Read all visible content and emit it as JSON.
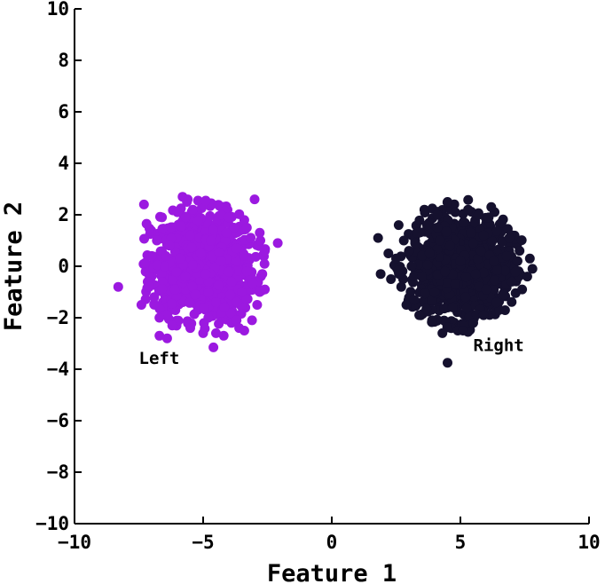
{
  "chart_data": {
    "type": "scatter",
    "xlabel": "Feature 1",
    "ylabel": "Feature 2",
    "xlim": [
      -10,
      10
    ],
    "ylim": [
      -10,
      10
    ],
    "xticks": [
      "−10",
      "−5",
      "0",
      "5",
      "10"
    ],
    "xtick_values": [
      -10,
      -5,
      0,
      5,
      10
    ],
    "yticks": [
      "−10",
      "−8",
      "−6",
      "−4",
      "−2",
      "0",
      "2",
      "4",
      "6",
      "8",
      "10"
    ],
    "ytick_values": [
      -10,
      -8,
      -6,
      -4,
      -2,
      0,
      2,
      4,
      6,
      8,
      10
    ],
    "grid": false,
    "legend": "none",
    "series": [
      {
        "color": "#9b19e0",
        "cluster_center": [
          -5,
          0
        ],
        "cluster_std": 1,
        "approx_points": 1000,
        "points": [
          [
            -8.3,
            -0.8
          ],
          [
            -7.3,
            2.4
          ],
          [
            -7.4,
            -1.5
          ],
          [
            -7.2,
            1.65
          ],
          [
            -7.1,
            -0.8
          ],
          [
            -7.0,
            0.4
          ],
          [
            -6.9,
            -1.2
          ],
          [
            -6.8,
            1.0
          ],
          [
            -6.7,
            -2.0
          ],
          [
            -6.6,
            1.9
          ],
          [
            -6.7,
            -2.7
          ],
          [
            -6.4,
            -2.8
          ],
          [
            -5.8,
            2.7
          ],
          [
            -5.6,
            2.6
          ],
          [
            -5.4,
            2.2
          ],
          [
            -5.2,
            2.55
          ],
          [
            -4.9,
            2.55
          ],
          [
            -4.8,
            -2.0
          ],
          [
            -4.6,
            -3.15
          ],
          [
            -4.5,
            -2.6
          ],
          [
            -4.3,
            2.0
          ],
          [
            -4.0,
            1.9
          ],
          [
            -3.9,
            -2.2
          ],
          [
            -3.7,
            -2.1
          ],
          [
            -3.6,
            -2.4
          ],
          [
            -3.4,
            -2.5
          ],
          [
            -3.3,
            1.5
          ],
          [
            -3.1,
            -2.1
          ],
          [
            -3.0,
            2.6
          ],
          [
            -2.9,
            -1.5
          ],
          [
            -2.8,
            -1.0
          ],
          [
            -2.8,
            1.3
          ],
          [
            -2.7,
            -0.3
          ],
          [
            -2.6,
            0.6
          ],
          [
            -2.6,
            -0.9
          ],
          [
            -2.1,
            0.9
          ],
          [
            -6.2,
            -2.3
          ],
          [
            -6.0,
            2.1
          ],
          [
            -5.5,
            -2.4
          ],
          [
            -5.0,
            -2.6
          ],
          [
            -4.2,
            -2.7
          ],
          [
            -6.5,
            0.0
          ],
          [
            -6.3,
            0.8
          ],
          [
            -6.1,
            -0.9
          ],
          [
            -5.9,
            0.3
          ],
          [
            -5.7,
            -0.4
          ],
          [
            -5.5,
            1.2
          ],
          [
            -5.3,
            -1.1
          ],
          [
            -5.1,
            0.5
          ],
          [
            -4.9,
            -0.3
          ],
          [
            -4.7,
            1.0
          ],
          [
            -4.5,
            -1.4
          ],
          [
            -4.3,
            0.2
          ],
          [
            -4.1,
            1.3
          ],
          [
            -3.9,
            -0.6
          ],
          [
            -3.7,
            0.7
          ],
          [
            -3.5,
            -1.0
          ],
          [
            -3.4,
            0.4
          ],
          [
            -3.3,
            -0.2
          ],
          [
            -3.8,
            1.5
          ]
        ]
      },
      {
        "color": "#15112e",
        "cluster_center": [
          5,
          0
        ],
        "cluster_std": 1,
        "approx_points": 1000,
        "points": [
          [
            1.8,
            1.1
          ],
          [
            1.9,
            -0.3
          ],
          [
            2.2,
            0.5
          ],
          [
            2.3,
            -0.5
          ],
          [
            2.5,
            0.3
          ],
          [
            2.6,
            1.6
          ],
          [
            2.7,
            -0.8
          ],
          [
            2.8,
            1.0
          ],
          [
            2.9,
            -1.5
          ],
          [
            3.0,
            0.6
          ],
          [
            3.2,
            -1.3
          ],
          [
            3.3,
            1.3
          ],
          [
            3.4,
            -1.9
          ],
          [
            3.6,
            2.2
          ],
          [
            3.7,
            1.6
          ],
          [
            3.9,
            -2.1
          ],
          [
            4.1,
            2.0
          ],
          [
            4.3,
            -2.6
          ],
          [
            4.5,
            2.5
          ],
          [
            4.5,
            -3.75
          ],
          [
            4.8,
            2.1
          ],
          [
            4.9,
            -2.5
          ],
          [
            5.1,
            -2.5
          ],
          [
            5.3,
            2.2
          ],
          [
            5.5,
            -2.2
          ],
          [
            5.7,
            2.0
          ],
          [
            5.9,
            -1.9
          ],
          [
            6.1,
            1.9
          ],
          [
            6.2,
            2.3
          ],
          [
            6.5,
            -1.7
          ],
          [
            6.6,
            1.7
          ],
          [
            6.7,
            -1.1
          ],
          [
            6.9,
            1.1
          ],
          [
            7.0,
            -0.6
          ],
          [
            7.3,
            0.6
          ],
          [
            7.4,
            -0.9
          ],
          [
            7.6,
            -0.4
          ],
          [
            7.7,
            0.3
          ],
          [
            7.8,
            -0.1
          ],
          [
            3.5,
            -0.4
          ],
          [
            3.8,
            0.5
          ],
          [
            4.0,
            -1.0
          ],
          [
            4.2,
            1.0
          ],
          [
            4.4,
            -0.2
          ],
          [
            4.6,
            0.8
          ],
          [
            4.8,
            -0.7
          ],
          [
            5.0,
            0.2
          ],
          [
            5.2,
            -1.2
          ],
          [
            5.4,
            1.3
          ],
          [
            5.6,
            -0.3
          ],
          [
            5.8,
            0.6
          ],
          [
            6.0,
            -0.9
          ],
          [
            6.3,
            0.2
          ],
          [
            6.4,
            -1.4
          ],
          [
            5.5,
            0.9
          ],
          [
            4.7,
            -1.6
          ],
          [
            5.9,
            1.2
          ],
          [
            4.1,
            1.5
          ],
          [
            6.8,
            0.4
          ],
          [
            3.1,
            0.0
          ]
        ]
      }
    ],
    "annotations": [
      {
        "text": "Left",
        "x": -7.5,
        "y": -3.8
      },
      {
        "text": "Right",
        "x": 5.5,
        "y": -3.3
      }
    ]
  }
}
